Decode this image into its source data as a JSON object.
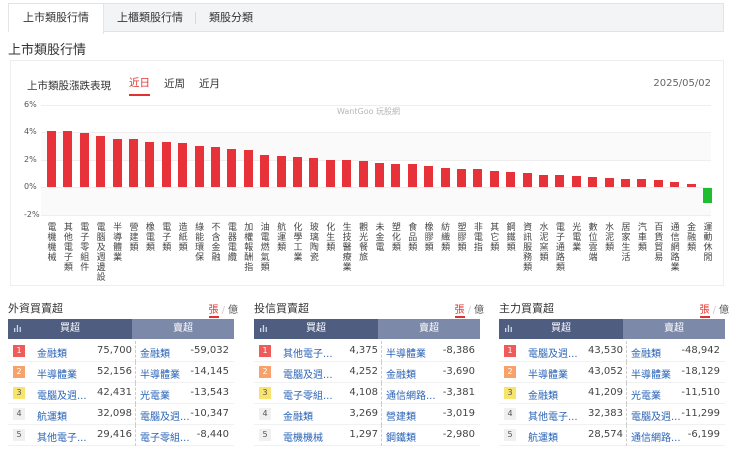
{
  "tabs": [
    {
      "label": "上市類股行情",
      "active": true
    },
    {
      "label": "上櫃類股行情",
      "active": false
    },
    {
      "label": "類股分類",
      "active": false
    }
  ],
  "page_title": "上市類股行情",
  "chart_header": {
    "label": "上市類股漲跌表現",
    "periods": [
      {
        "label": "近日",
        "active": true
      },
      {
        "label": "近周",
        "active": false
      },
      {
        "label": "近月",
        "active": false
      }
    ],
    "date": "2025/05/02",
    "watermark": "WantGoo 玩股網"
  },
  "colors": {
    "up": "#e8323a",
    "down": "#1ebe2e",
    "accent": "#e0322f",
    "header_dark": "#4f5d80",
    "header_light": "#7c89a8",
    "link": "#2a64b7"
  },
  "chart_data": {
    "type": "bar",
    "title": "上市類股漲跌表現",
    "xlabel": "",
    "ylabel": "",
    "ylim": [
      -2,
      6
    ],
    "y_ticks": [
      "6%",
      "4%",
      "2%",
      "0%",
      "-2%"
    ],
    "grid": true,
    "legend": "none",
    "categories": [
      "電機機械",
      "其他電子類",
      "電子零組件",
      "電腦及週邊設",
      "半導體業",
      "營建類",
      "橡電類",
      "電子類",
      "造紙類",
      "綠能環保",
      "不含金融",
      "電器電纜",
      "加權報酬指",
      "油電燃氣類",
      "航運類",
      "化學工業",
      "玻璃陶瓷",
      "化生類",
      "生技醫療業",
      "觀光餐旅",
      "未金電",
      "塑化類",
      "食品類",
      "橡膠類",
      "紡織類",
      "塑膠類",
      "非電指",
      "其它類",
      "鋼鐵類",
      "資訊服務類",
      "水泥窯類",
      "電子通路類",
      "光電業",
      "數位雲端",
      "水泥類",
      "居家生活",
      "汽車類",
      "百貨貿易",
      "通信網路業",
      "金融類",
      "運動休閒"
    ],
    "values": [
      4.1,
      4.05,
      3.9,
      3.7,
      3.5,
      3.5,
      3.3,
      3.3,
      3.2,
      2.95,
      2.9,
      2.8,
      2.7,
      2.3,
      2.25,
      2.2,
      2.1,
      2.0,
      1.95,
      1.9,
      1.75,
      1.7,
      1.65,
      1.55,
      1.35,
      1.3,
      1.3,
      1.2,
      1.1,
      1.05,
      0.85,
      0.85,
      0.8,
      0.75,
      0.65,
      0.6,
      0.55,
      0.5,
      0.4,
      0.25,
      -1.1
    ]
  },
  "panels": [
    {
      "title": "外資買賣超",
      "unit_on": "張",
      "unit_off": "億",
      "buy_header": "買超",
      "sell_header": "賣超",
      "rows": [
        {
          "rank": "1",
          "buy_name": "金融類",
          "buy_val": "75,700",
          "sell_name": "金融類",
          "sell_val": "-59,032"
        },
        {
          "rank": "2",
          "buy_name": "半導體業",
          "buy_val": "52,156",
          "sell_name": "半導體業",
          "sell_val": "-14,145"
        },
        {
          "rank": "3",
          "buy_name": "電腦及週...",
          "buy_val": "42,431",
          "sell_name": "光電業",
          "sell_val": "-13,543"
        },
        {
          "rank": "4",
          "buy_name": "航運類",
          "buy_val": "32,098",
          "sell_name": "電腦及週...",
          "sell_val": "-10,347"
        },
        {
          "rank": "5",
          "buy_name": "其他電子...",
          "buy_val": "29,416",
          "sell_name": "電子零組...",
          "sell_val": "-8,440"
        }
      ]
    },
    {
      "title": "投信買賣超",
      "unit_on": "張",
      "unit_off": "億",
      "buy_header": "買超",
      "sell_header": "賣超",
      "rows": [
        {
          "rank": "1",
          "buy_name": "其他電子...",
          "buy_val": "4,375",
          "sell_name": "半導體業",
          "sell_val": "-8,386"
        },
        {
          "rank": "2",
          "buy_name": "電腦及週...",
          "buy_val": "4,252",
          "sell_name": "金融類",
          "sell_val": "-3,690"
        },
        {
          "rank": "3",
          "buy_name": "電子零組...",
          "buy_val": "4,108",
          "sell_name": "通信網路...",
          "sell_val": "-3,381"
        },
        {
          "rank": "4",
          "buy_name": "金融類",
          "buy_val": "3,269",
          "sell_name": "營建類",
          "sell_val": "-3,019"
        },
        {
          "rank": "5",
          "buy_name": "電機機械",
          "buy_val": "1,297",
          "sell_name": "鋼鐵類",
          "sell_val": "-2,980"
        }
      ]
    },
    {
      "title": "主力買賣超",
      "unit_on": "張",
      "unit_off": "億",
      "buy_header": "買超",
      "sell_header": "賣超",
      "rows": [
        {
          "rank": "1",
          "buy_name": "電腦及週...",
          "buy_val": "43,530",
          "sell_name": "金融類",
          "sell_val": "-48,942"
        },
        {
          "rank": "2",
          "buy_name": "半導體業",
          "buy_val": "43,052",
          "sell_name": "半導體業",
          "sell_val": "-18,129"
        },
        {
          "rank": "3",
          "buy_name": "金融類",
          "buy_val": "41,209",
          "sell_name": "光電業",
          "sell_val": "-11,510"
        },
        {
          "rank": "4",
          "buy_name": "其他電子...",
          "buy_val": "32,383",
          "sell_name": "電腦及週...",
          "sell_val": "-11,299"
        },
        {
          "rank": "5",
          "buy_name": "航運類",
          "buy_val": "28,574",
          "sell_name": "通信網路...",
          "sell_val": "-6,199"
        }
      ]
    }
  ]
}
